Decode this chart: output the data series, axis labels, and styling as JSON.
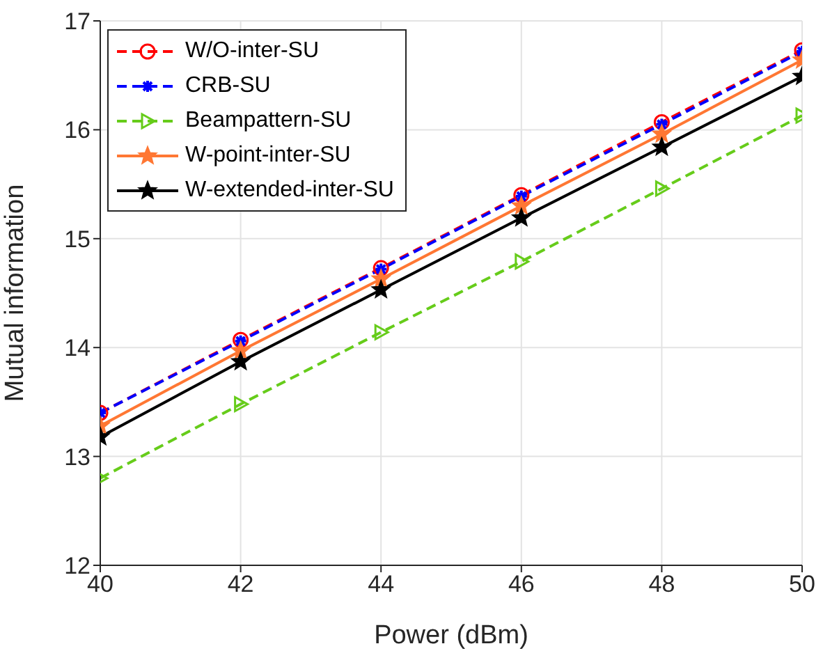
{
  "chart_data": {
    "type": "line",
    "xlabel": "Power (dBm)",
    "ylabel": "Mutual information",
    "x": [
      40,
      42,
      44,
      46,
      48,
      50
    ],
    "xlim": [
      40,
      50
    ],
    "xticks": [
      40,
      42,
      44,
      46,
      48,
      50
    ],
    "ylim": [
      12,
      17
    ],
    "yticks": [
      12,
      13,
      14,
      15,
      16,
      17
    ],
    "grid": true,
    "legend": "top left",
    "series": [
      {
        "name": "W/O-inter-SU",
        "color": "#ff0000",
        "marker": "circle",
        "line_style": "dashed",
        "values": [
          13.4,
          14.07,
          14.73,
          15.4,
          16.07,
          16.73
        ]
      },
      {
        "name": "CRB-SU",
        "color": "#0000ff",
        "marker": "cross",
        "line_style": "dashed",
        "values": [
          13.4,
          14.06,
          14.72,
          15.39,
          16.05,
          16.72
        ]
      },
      {
        "name": "Beampattern-SU",
        "color": "#66cc1a",
        "marker": "triangle",
        "line_style": "dashed",
        "values": [
          12.8,
          13.48,
          14.14,
          14.79,
          15.46,
          16.13
        ]
      },
      {
        "name": "W-point-inter-SU",
        "color": "#ff7733",
        "marker": "star",
        "line_style": "solid",
        "values": [
          13.28,
          13.97,
          14.63,
          15.3,
          15.96,
          16.64
        ]
      },
      {
        "name": "W-extended-inter-SU",
        "color": "#000000",
        "marker": "star",
        "line_style": "solid",
        "values": [
          13.18,
          13.87,
          14.53,
          15.19,
          15.84,
          16.49
        ]
      }
    ]
  }
}
